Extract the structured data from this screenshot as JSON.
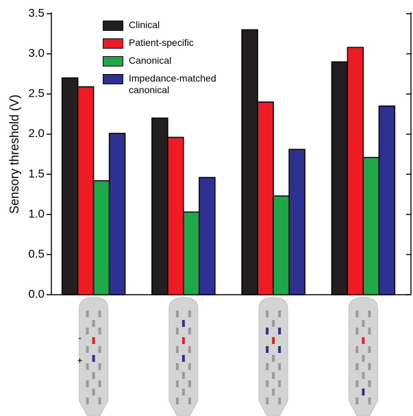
{
  "chart_data": {
    "type": "bar",
    "y_label": "Sensory threshold (V)",
    "categories": [
      null,
      null,
      null,
      null
    ],
    "series": [
      {
        "name": "Clinical",
        "color": "#231f20",
        "values": [
          2.7,
          2.2,
          3.3,
          2.9
        ]
      },
      {
        "name": "Patient-specific",
        "color": "#ed1c24",
        "values": [
          2.59,
          1.96,
          2.4,
          3.08
        ]
      },
      {
        "name": "Canonical",
        "color": "#1ea84a",
        "values": [
          1.42,
          1.03,
          1.23,
          1.71
        ]
      },
      {
        "name": "Impedance-matched canonical",
        "color": "#2e3192",
        "values": [
          2.01,
          1.46,
          1.81,
          2.35
        ]
      }
    ],
    "ylim": [
      0,
      3.5
    ],
    "yticks": [
      {
        "value": 0,
        "label": "0.0"
      },
      0.5,
      {
        "value": 1,
        "label": "1.0"
      },
      1.5,
      {
        "value": 2,
        "label": "2.0"
      },
      2.5,
      {
        "value": 3,
        "label": "3.0"
      },
      3.5
    ],
    "annotations": [
      "-",
      "+"
    ]
  }
}
